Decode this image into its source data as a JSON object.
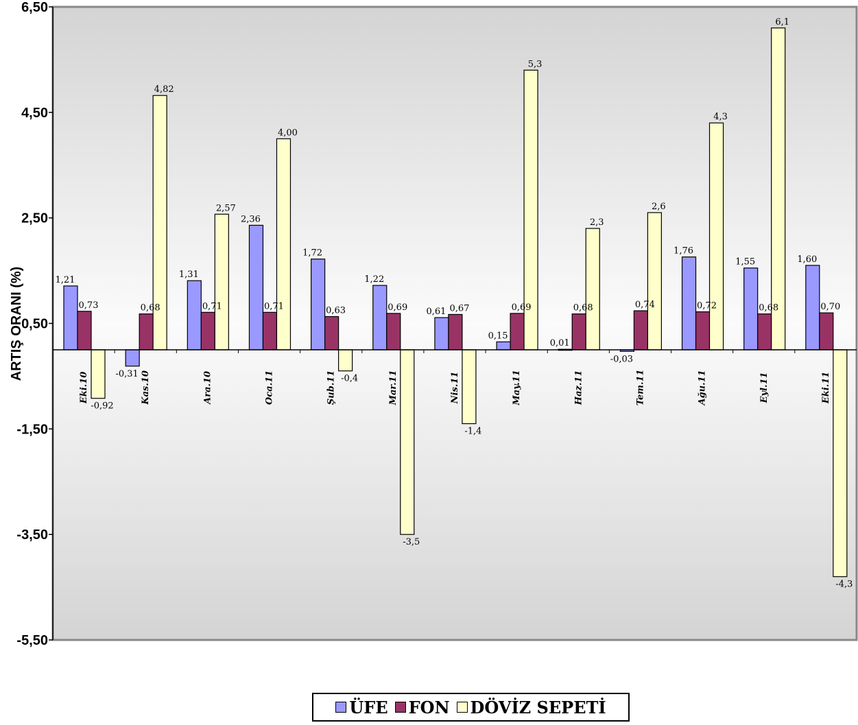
{
  "chart_data": {
    "type": "bar",
    "ylabel": "ARTIŞ ORANI (%)",
    "ylim": [
      -5.5,
      6.5
    ],
    "yticks": [
      "6,50",
      "4,50",
      "2,50",
      "0,50",
      "-1,50",
      "-3,50",
      "-5,50"
    ],
    "ytick_values": [
      6.5,
      4.5,
      2.5,
      0.5,
      -1.5,
      -3.5,
      -5.5
    ],
    "categories": [
      "Eki.10",
      "Kas.10",
      "Ara.10",
      "Oca.11",
      "Şub.11",
      "Mar.11",
      "Nis.11",
      "May.11",
      "Haz.11",
      "Tem.11",
      "Ağu.11",
      "Eyl.11",
      "Eki.11"
    ],
    "series": [
      {
        "name": "ÜFE",
        "color": "#9999ff",
        "values": [
          1.21,
          -0.31,
          1.31,
          2.36,
          1.72,
          1.22,
          0.61,
          0.15,
          0.01,
          -0.03,
          1.76,
          1.55,
          1.6
        ],
        "labels": [
          "1,21",
          "-0,31",
          "1,31",
          "2,36",
          "1,72",
          "1,22",
          "0,61",
          "0,15",
          "0,01",
          "-0,03",
          "1,76",
          "1,55",
          "1,60"
        ]
      },
      {
        "name": "FON",
        "color": "#993366",
        "values": [
          0.73,
          0.68,
          0.71,
          0.71,
          0.63,
          0.69,
          0.67,
          0.69,
          0.68,
          0.74,
          0.72,
          0.68,
          0.7
        ],
        "labels": [
          "0,73",
          "0,68",
          "0,71",
          "0,71",
          "0,63",
          "0,69",
          "0,67",
          "0,69",
          "0,68",
          "0,74",
          "0,72",
          "0,68",
          "0,70"
        ]
      },
      {
        "name": "DÖVİZ SEPETİ",
        "color": "#ffffcc",
        "values": [
          -0.92,
          4.82,
          2.57,
          4.0,
          -0.4,
          -3.5,
          -1.4,
          5.3,
          2.3,
          2.6,
          4.3,
          6.1,
          -4.3
        ],
        "labels": [
          "-0,92",
          "4,82",
          "2,57",
          "4,00",
          "-0,4",
          "-3,5",
          "-1,4",
          "5,3",
          "2,3",
          "2,6",
          "4,3",
          "6,1",
          "-4,3"
        ]
      }
    ],
    "grid": false,
    "legend_position": "bottom-center",
    "plot_background": "gradient-gray"
  }
}
